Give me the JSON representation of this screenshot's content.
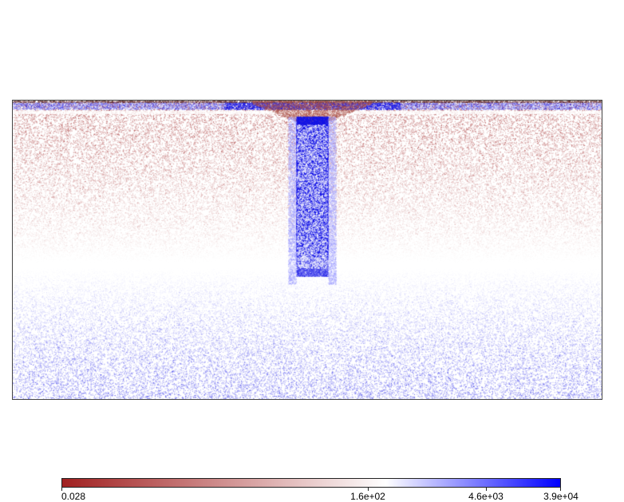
{
  "colormap": {
    "low_color": "#a02020",
    "mid_color": "#ffffff",
    "high_color": "#0000ff",
    "ticks": [
      {
        "label": "0.028",
        "position": 0.0
      },
      {
        "label": "1.6e+02",
        "position": 0.65
      },
      {
        "label": "4.6e+03",
        "position": 0.85
      },
      {
        "label": "3.9e+04",
        "position": 1.0
      }
    ]
  }
}
